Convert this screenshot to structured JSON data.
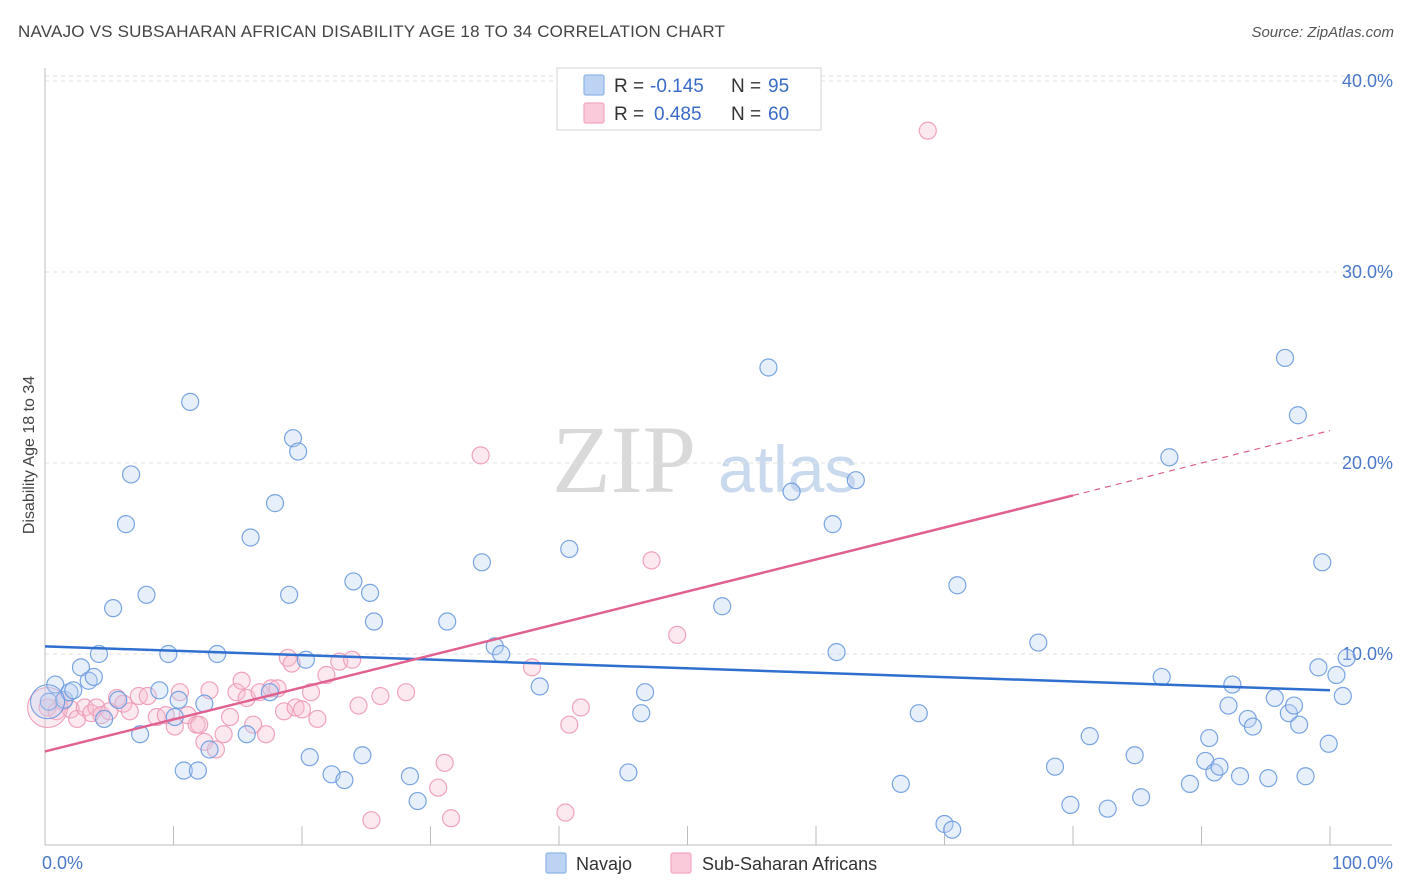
{
  "header": {
    "title": "NAVAJO VS SUBSAHARAN AFRICAN DISABILITY AGE 18 TO 34 CORRELATION CHART",
    "source": "Source: ZipAtlas.com"
  },
  "watermark": {
    "zip": "ZIP",
    "atlas": "atlas"
  },
  "legend": {
    "rows": [
      {
        "r_label": "R =",
        "r_value": "-0.145",
        "n_label": "N =",
        "n_value": "95",
        "color": "#8fb4e8"
      },
      {
        "r_label": "R =",
        "r_value": "0.485",
        "n_label": "N =",
        "n_value": "60",
        "color": "#f2a7c0"
      }
    ]
  },
  "colors": {
    "navajo": "#6b9be0",
    "subsaharan": "#ee9ab6",
    "navajo_line": "#2f6fcf",
    "subsaharan_line": "#e0608f"
  },
  "chart_data": {
    "type": "scatter",
    "title": "NAVAJO VS SUBSAHARAN AFRICAN DISABILITY AGE 18 TO 34 CORRELATION CHART",
    "xlabel": "",
    "ylabel": "Disability Age 18 to 34",
    "xlim": [
      0,
      100
    ],
    "ylim": [
      0,
      42
    ],
    "x_tick_labels": [
      "0.0%",
      "100.0%"
    ],
    "y_ticks": [
      10,
      20,
      30,
      40
    ],
    "y_tick_labels": [
      "10.0%",
      "20.0%",
      "30.0%",
      "40.0%"
    ],
    "legend_position": "top-center",
    "grid": true,
    "series": [
      {
        "name": "Navajo",
        "r": -0.145,
        "n": 95,
        "trend": {
          "x0": 0,
          "y0": 10.4,
          "x1": 100,
          "y1": 8.1
        },
        "points": [
          [
            0.3,
            7.5
          ],
          [
            0.8,
            8.4
          ],
          [
            1.5,
            7.6
          ],
          [
            1.9,
            8.0
          ],
          [
            2.2,
            8.1
          ],
          [
            2.8,
            9.3
          ],
          [
            3.4,
            8.6
          ],
          [
            3.8,
            8.8
          ],
          [
            4.2,
            10.0
          ],
          [
            4.6,
            6.6
          ],
          [
            5.3,
            12.4
          ],
          [
            5.7,
            7.6
          ],
          [
            6.3,
            16.8
          ],
          [
            6.7,
            19.4
          ],
          [
            7.4,
            5.8
          ],
          [
            7.9,
            13.1
          ],
          [
            8.9,
            8.1
          ],
          [
            9.6,
            10.0
          ],
          [
            10.1,
            6.7
          ],
          [
            10.4,
            7.6
          ],
          [
            10.8,
            3.9
          ],
          [
            11.3,
            23.2
          ],
          [
            11.9,
            3.9
          ],
          [
            12.4,
            7.4
          ],
          [
            12.8,
            5.0
          ],
          [
            13.4,
            10.0
          ],
          [
            15.7,
            5.8
          ],
          [
            16.0,
            16.1
          ],
          [
            17.5,
            8.0
          ],
          [
            17.9,
            17.9
          ],
          [
            19.0,
            13.1
          ],
          [
            19.3,
            21.3
          ],
          [
            19.7,
            20.6
          ],
          [
            20.3,
            9.7
          ],
          [
            20.6,
            4.6
          ],
          [
            22.3,
            3.7
          ],
          [
            23.3,
            3.4
          ],
          [
            24.0,
            13.8
          ],
          [
            24.7,
            4.7
          ],
          [
            25.3,
            13.2
          ],
          [
            25.6,
            11.7
          ],
          [
            28.4,
            3.6
          ],
          [
            29.0,
            2.3
          ],
          [
            31.3,
            11.7
          ],
          [
            34.0,
            14.8
          ],
          [
            35.0,
            10.4
          ],
          [
            35.5,
            10.0
          ],
          [
            38.5,
            8.3
          ],
          [
            40.8,
            15.5
          ],
          [
            45.4,
            3.8
          ],
          [
            46.4,
            6.9
          ],
          [
            46.7,
            8.0
          ],
          [
            52.7,
            12.5
          ],
          [
            56.3,
            25.0
          ],
          [
            58.1,
            18.5
          ],
          [
            61.3,
            16.8
          ],
          [
            61.6,
            10.1
          ],
          [
            63.1,
            19.1
          ],
          [
            66.6,
            3.2
          ],
          [
            68.0,
            6.9
          ],
          [
            70.0,
            1.1
          ],
          [
            70.6,
            0.8
          ],
          [
            71.0,
            13.6
          ],
          [
            77.3,
            10.6
          ],
          [
            78.6,
            4.1
          ],
          [
            79.8,
            2.1
          ],
          [
            81.3,
            5.7
          ],
          [
            82.7,
            1.9
          ],
          [
            84.8,
            4.7
          ],
          [
            85.3,
            2.5
          ],
          [
            86.9,
            8.8
          ],
          [
            87.5,
            20.3
          ],
          [
            89.1,
            3.2
          ],
          [
            90.3,
            4.4
          ],
          [
            90.6,
            5.6
          ],
          [
            91.0,
            3.8
          ],
          [
            91.4,
            4.1
          ],
          [
            92.1,
            7.3
          ],
          [
            92.4,
            8.4
          ],
          [
            93.0,
            3.6
          ],
          [
            93.6,
            6.6
          ],
          [
            94.0,
            6.2
          ],
          [
            95.2,
            3.5
          ],
          [
            95.7,
            7.7
          ],
          [
            96.8,
            6.9
          ],
          [
            97.2,
            7.3
          ],
          [
            97.6,
            6.3
          ],
          [
            98.1,
            3.6
          ],
          [
            99.1,
            9.3
          ],
          [
            99.4,
            14.8
          ],
          [
            99.9,
            5.3
          ],
          [
            100.5,
            8.9
          ],
          [
            101.0,
            7.8
          ],
          [
            101.3,
            9.8
          ],
          [
            96.5,
            25.5
          ],
          [
            97.5,
            22.5
          ]
        ]
      },
      {
        "name": "Sub-Saharan Africans",
        "r": 0.485,
        "n": 60,
        "trend": {
          "x0": 0,
          "y0": 4.9,
          "x1": 80,
          "y1": 18.3,
          "dash_x1": 100,
          "dash_y1": 21.7
        },
        "points": [
          [
            0.2,
            7.2
          ],
          [
            0.9,
            7.0
          ],
          [
            1.4,
            7.5
          ],
          [
            2.0,
            7.1
          ],
          [
            2.5,
            6.6
          ],
          [
            3.1,
            7.2
          ],
          [
            3.6,
            6.9
          ],
          [
            4.0,
            7.2
          ],
          [
            4.4,
            6.8
          ],
          [
            5.0,
            7.0
          ],
          [
            5.6,
            7.7
          ],
          [
            6.1,
            7.4
          ],
          [
            6.6,
            7.0
          ],
          [
            7.3,
            7.8
          ],
          [
            8.0,
            7.8
          ],
          [
            8.7,
            6.7
          ],
          [
            9.4,
            6.8
          ],
          [
            10.1,
            6.2
          ],
          [
            10.5,
            8.0
          ],
          [
            11.1,
            6.8
          ],
          [
            11.8,
            6.3
          ],
          [
            12.4,
            5.4
          ],
          [
            12.8,
            8.1
          ],
          [
            13.3,
            5.0
          ],
          [
            13.9,
            5.8
          ],
          [
            14.4,
            6.7
          ],
          [
            14.9,
            8.0
          ],
          [
            15.3,
            8.6
          ],
          [
            15.7,
            7.7
          ],
          [
            16.2,
            6.3
          ],
          [
            16.7,
            8.0
          ],
          [
            17.2,
            5.8
          ],
          [
            17.6,
            8.2
          ],
          [
            18.1,
            8.2
          ],
          [
            18.6,
            7.0
          ],
          [
            18.9,
            9.8
          ],
          [
            19.5,
            7.2
          ],
          [
            20.0,
            7.1
          ],
          [
            20.7,
            8.0
          ],
          [
            21.2,
            6.6
          ],
          [
            21.9,
            8.9
          ],
          [
            22.9,
            9.6
          ],
          [
            23.9,
            9.7
          ],
          [
            24.4,
            7.3
          ],
          [
            25.4,
            1.3
          ],
          [
            26.1,
            7.8
          ],
          [
            28.1,
            8.0
          ],
          [
            30.6,
            3.0
          ],
          [
            31.1,
            4.3
          ],
          [
            31.6,
            1.4
          ],
          [
            33.9,
            20.4
          ],
          [
            37.9,
            9.3
          ],
          [
            40.5,
            1.7
          ],
          [
            40.8,
            6.3
          ],
          [
            41.7,
            7.2
          ],
          [
            47.2,
            14.9
          ],
          [
            49.2,
            11.0
          ],
          [
            68.7,
            37.4
          ],
          [
            12.0,
            6.3
          ],
          [
            19.2,
            9.5
          ]
        ]
      }
    ]
  }
}
